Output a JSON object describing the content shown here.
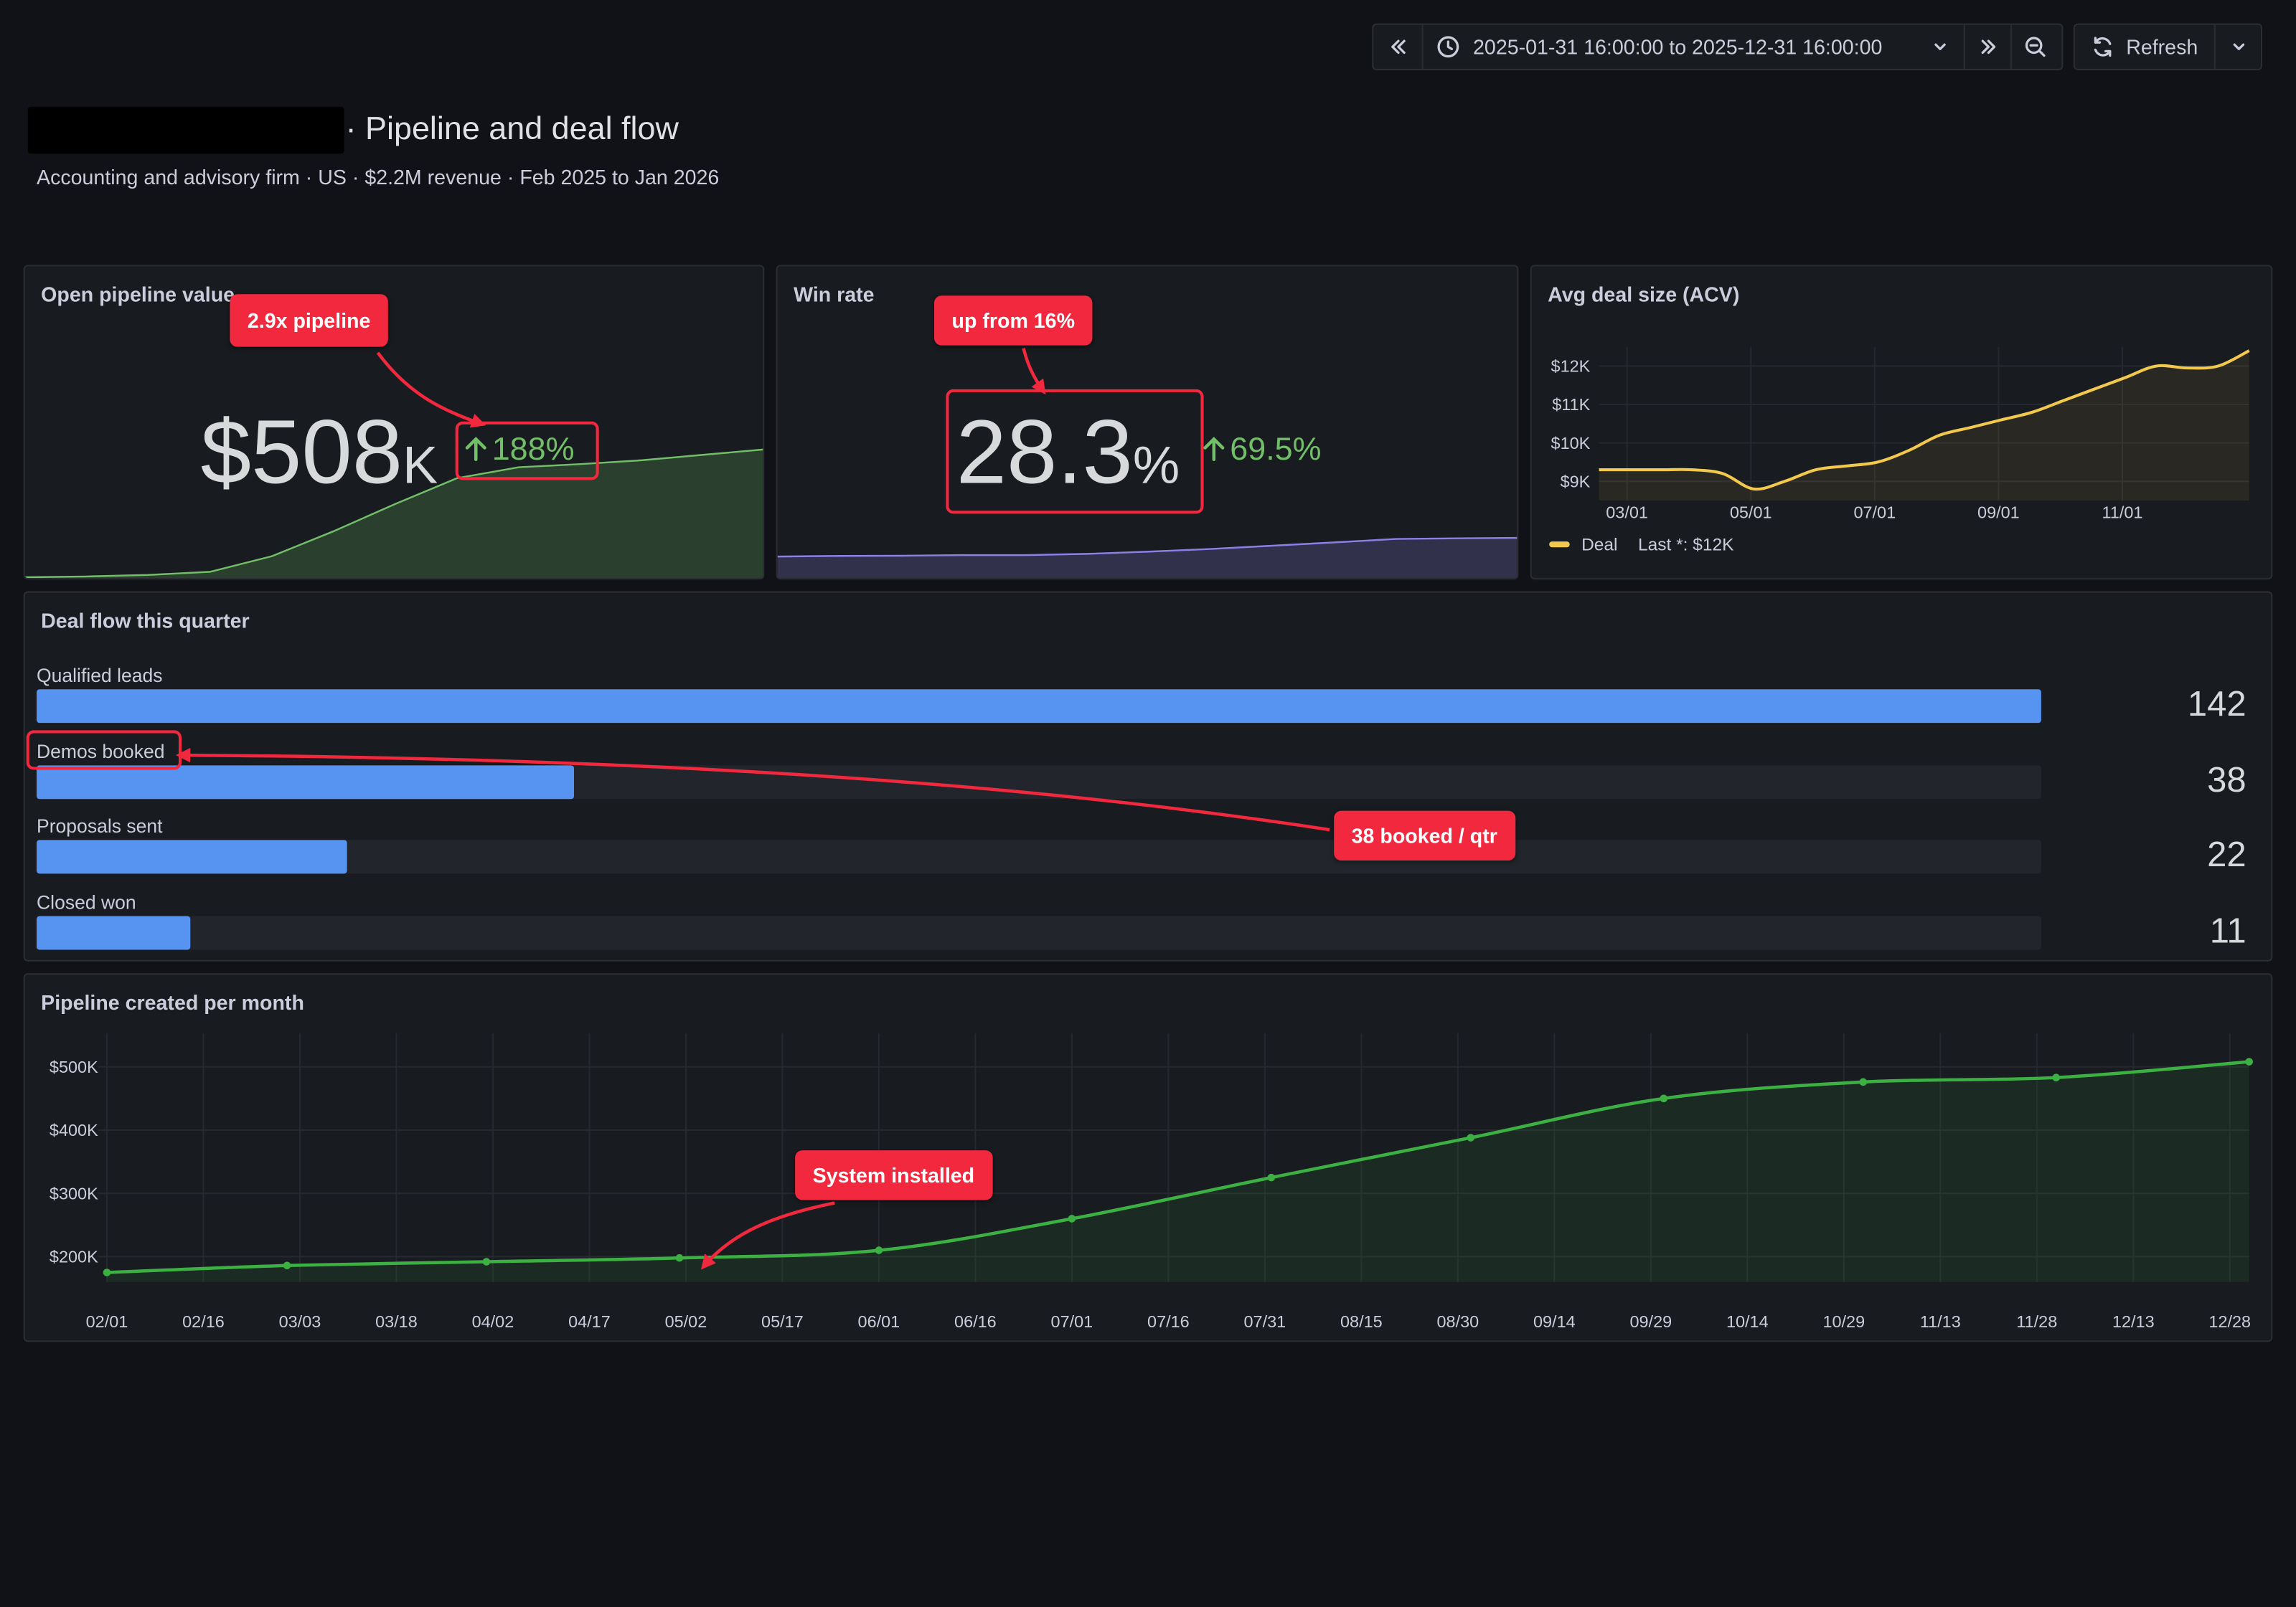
{
  "toolbar": {
    "time_range": "2025-01-31 16:00:00 to 2025-12-31 16:00:00",
    "refresh_label": "Refresh",
    "icons": [
      "chevrons-left-icon",
      "clock-icon",
      "chevron-down-icon",
      "chevrons-right-icon",
      "zoom-out-icon",
      "refresh-icon",
      "chevron-down-icon"
    ]
  },
  "header": {
    "title": "· Pipeline and deal flow",
    "subtitle": "Accounting and advisory firm · US · $2.2M revenue · Feb 2025 to Jan 2026"
  },
  "pipeline_stat": {
    "title": "Open pipeline value",
    "value": "$508",
    "unit": "K",
    "delta": "188%",
    "callout": "2.9x pipeline",
    "sparkline": [
      1,
      2,
      4,
      8,
      28,
      60,
      95,
      128,
      142,
      146,
      151,
      158,
      165
    ],
    "color": "#73bf69"
  },
  "winrate_stat": {
    "title": "Win rate",
    "value": "28.3",
    "unit": "%",
    "delta": "69.5%",
    "callout": "up from 16%",
    "sparkline": [
      16.5,
      16.8,
      16.9,
      17.2,
      17.2,
      17.8,
      18.9,
      20.2,
      21.8,
      23.4,
      25.1,
      25.4,
      25.6
    ],
    "color": "#8f7ee8"
  },
  "acv_panel": {
    "title": "Avg deal size (ACV)",
    "legend_series": "Deal",
    "legend_last": "Last *: $12K",
    "color": "#f2c94c"
  },
  "deal_flow": {
    "title": "Deal flow this quarter",
    "callout": "38 booked / qtr",
    "max": 142,
    "rows": [
      {
        "label": "Qualified leads",
        "value": "142",
        "fraction": 1.0
      },
      {
        "label": "Demos booked",
        "value": "38",
        "fraction": 0.268
      },
      {
        "label": "Proposals sent",
        "value": "22",
        "fraction": 0.155
      },
      {
        "label": "Closed won",
        "value": "11",
        "fraction": 0.077
      }
    ]
  },
  "pipeline_monthly": {
    "title": "Pipeline created per month",
    "callout": "System installed"
  },
  "chart_data": [
    {
      "type": "area",
      "title": "Avg deal size (ACV)",
      "x": [
        "02/01",
        "03/01",
        "03/16",
        "04/01",
        "04/15",
        "05/01",
        "05/15",
        "06/01",
        "06/15",
        "07/01",
        "07/15",
        "08/01",
        "08/15",
        "09/01",
        "09/15",
        "10/01",
        "10/15",
        "11/01",
        "11/15",
        "12/01",
        "12/15",
        "12/31"
      ],
      "series": [
        {
          "name": "Deal",
          "values": [
            9.3,
            9.3,
            9.3,
            9.3,
            9.2,
            8.8,
            9.0,
            9.3,
            9.4,
            9.5,
            9.8,
            10.2,
            10.4,
            10.6,
            10.8,
            11.1,
            11.4,
            11.7,
            12.0,
            11.95,
            12.0,
            12.4
          ]
        }
      ],
      "y_ticks": [
        "$9K",
        "$10K",
        "$11K",
        "$12K"
      ],
      "x_ticks": [
        "03/01",
        "05/01",
        "07/01",
        "09/01",
        "11/01"
      ],
      "ylim": [
        8.5,
        12.5
      ],
      "grid": true,
      "legend": "bottom-left"
    },
    {
      "type": "line",
      "title": "Pipeline created per month",
      "x": [
        "2025-02-01",
        "2025-03-01",
        "2025-04-01",
        "2025-05-01",
        "2025-06-01",
        "2025-07-01",
        "2025-08-01",
        "2025-09-01",
        "2025-10-01",
        "2025-11-01",
        "2025-12-01",
        "2025-12-31"
      ],
      "series": [
        {
          "name": "",
          "values": [
            175,
            186,
            192,
            198,
            210,
            260,
            325,
            388,
            450,
            476,
            483,
            508
          ]
        }
      ],
      "y_ticks": [
        "$200K",
        "$300K",
        "$400K",
        "$500K"
      ],
      "x_ticks": [
        "02/01",
        "02/16",
        "03/03",
        "03/18",
        "04/02",
        "04/17",
        "05/02",
        "05/17",
        "06/01",
        "06/16",
        "07/01",
        "07/16",
        "07/31",
        "08/15",
        "08/30",
        "09/14",
        "09/29",
        "10/14",
        "10/29",
        "11/13",
        "11/28",
        "12/13",
        "12/28"
      ],
      "ylim": [
        160,
        530
      ],
      "grid": true,
      "color": "#3cb043"
    }
  ]
}
